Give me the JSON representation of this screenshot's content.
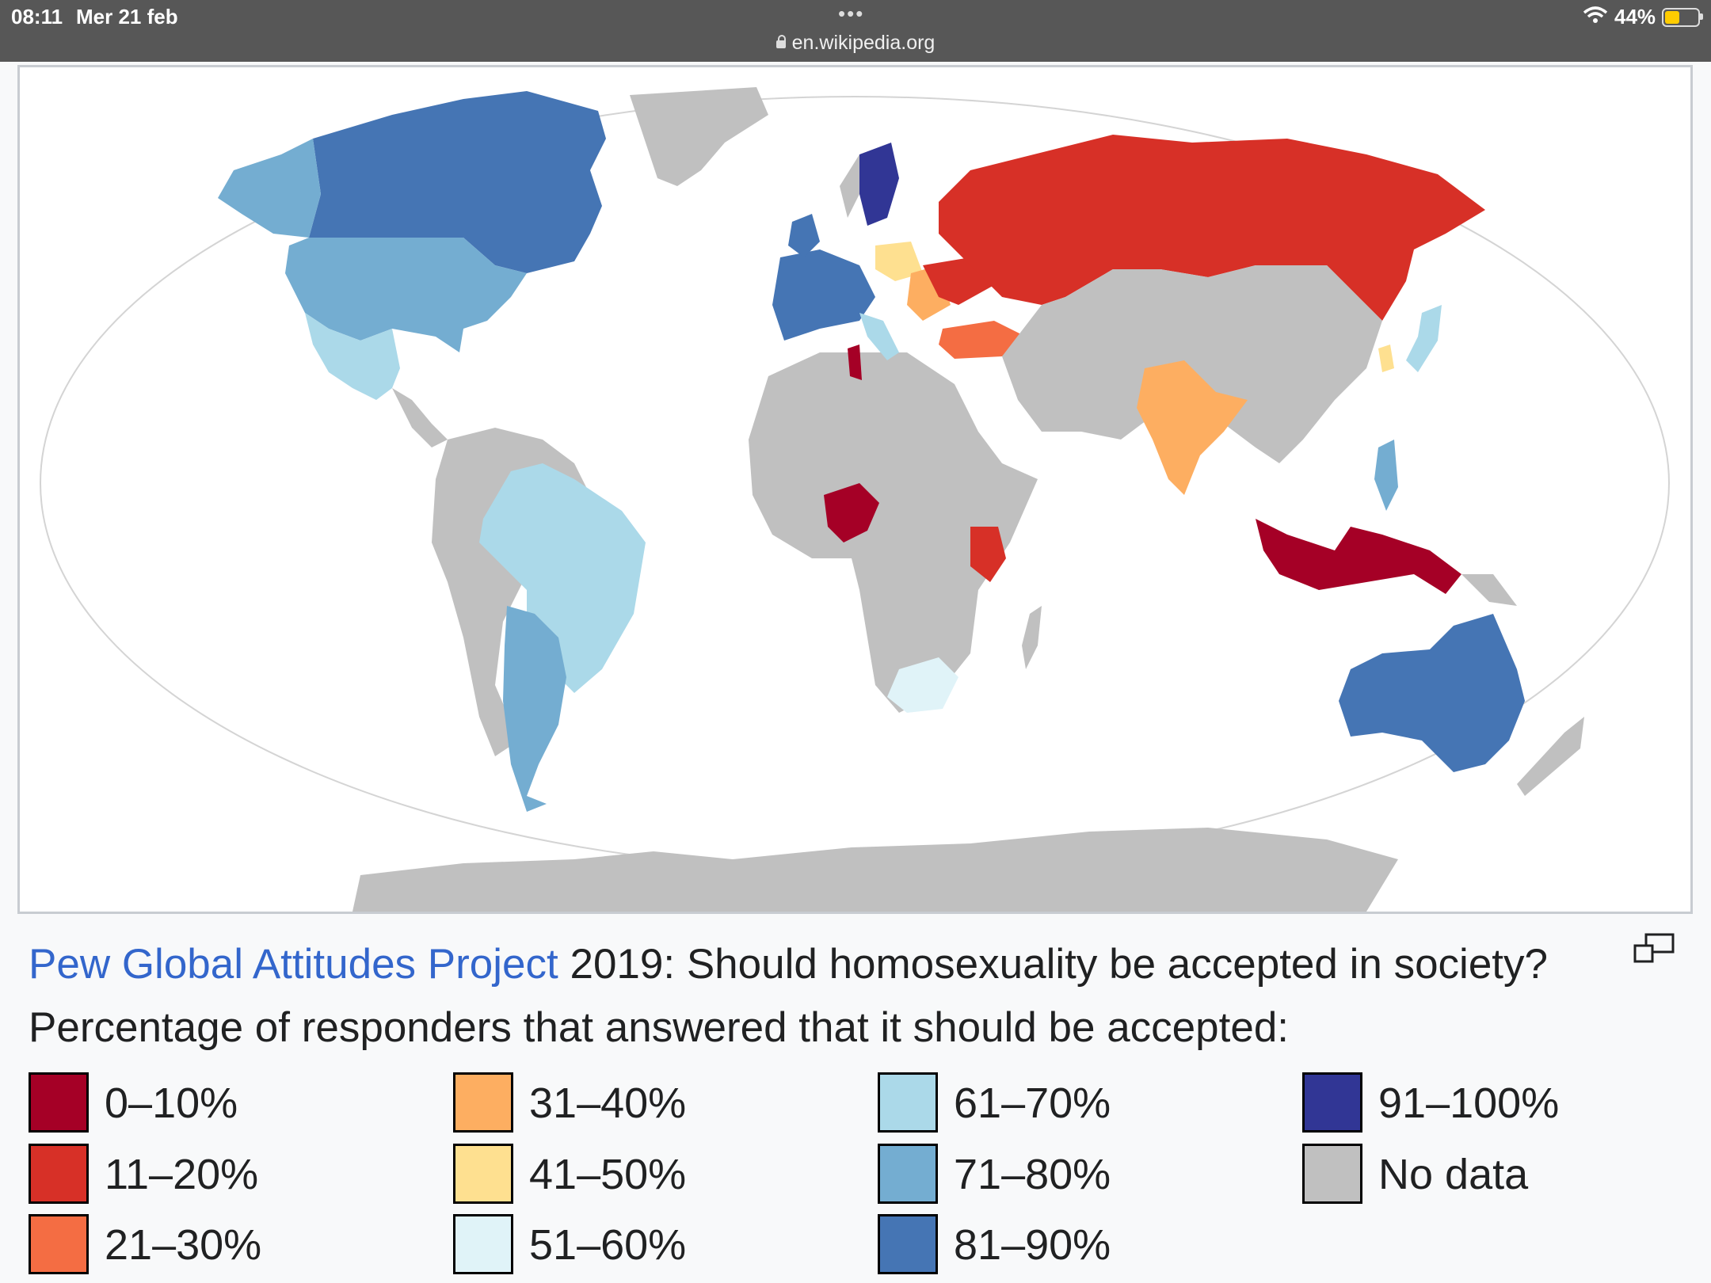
{
  "status_bar": {
    "time": "08:11",
    "date": "Mer 21 feb",
    "url": "en.wikipedia.org",
    "battery": "44%",
    "battery_level": 0.44
  },
  "caption": {
    "link": "Pew Global Attitudes Project",
    "text": " 2019: Should homosexuality be accepted in society? Percentage of responders that answered that it should be accepted:"
  },
  "legend": [
    {
      "label": "0–10%",
      "color": "#a50026"
    },
    {
      "label": "11–20%",
      "color": "#d73027"
    },
    {
      "label": "21–30%",
      "color": "#f46d43"
    },
    {
      "label": "31–40%",
      "color": "#fdae61"
    },
    {
      "label": "41–50%",
      "color": "#fee090"
    },
    {
      "label": "51–60%",
      "color": "#e0f3f8"
    },
    {
      "label": "61–70%",
      "color": "#abd9e9"
    },
    {
      "label": "71–80%",
      "color": "#74add1"
    },
    {
      "label": "81–90%",
      "color": "#4575b4"
    },
    {
      "label": "91–100%",
      "color": "#313695"
    },
    {
      "label": "No data",
      "color": "#c0c0c0"
    }
  ]
}
